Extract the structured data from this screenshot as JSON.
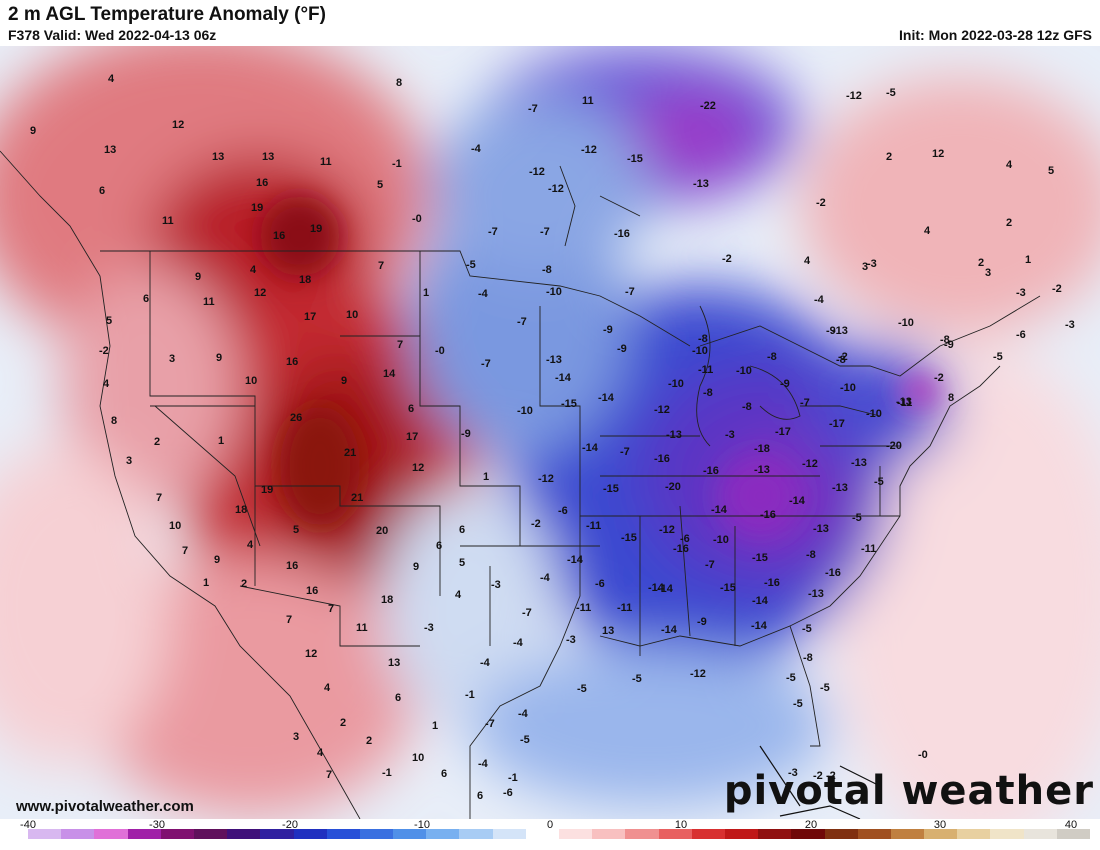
{
  "header": {
    "title": "2 m AGL Temperature Anomaly (°F)",
    "valid": "F378 Valid: Wed 2022-04-13 06z",
    "init": "Init: Mon 2022-03-28 12z GFS"
  },
  "footer": {
    "website": "www.pivotalweather.com",
    "logo": "pivotal weather"
  },
  "colorbar": {
    "labels": [
      "-40",
      "-30",
      "-20",
      "-10",
      "0",
      "10",
      "20",
      "30",
      "40"
    ],
    "colors": [
      "#d8b8f0",
      "#c890e8",
      "#e070d8",
      "#a020a8",
      "#801070",
      "#60105c",
      "#40107a",
      "#3020a0",
      "#2030c0",
      "#2850d8",
      "#3a70e0",
      "#5090e8",
      "#78b0f0",
      "#a8ccf4",
      "#d4e4f8",
      "#ffffff",
      "#fce0e0",
      "#f8c0c0",
      "#f09090",
      "#e86060",
      "#d83030",
      "#c01818",
      "#901010",
      "#700808",
      "#803010",
      "#a05020",
      "#c08040",
      "#d8b070",
      "#e8d0a0",
      "#f0e4c8",
      "#e8e4dc",
      "#d0ccc4"
    ]
  },
  "map_labels": [
    {
      "t": "4",
      "id": "anom-1"
    },
    {
      "t": "8",
      "id": "anom-2"
    },
    {
      "t": "9",
      "id": "anom-3"
    },
    {
      "t": "12",
      "id": "anom-4"
    },
    {
      "t": "13",
      "id": "anom-5"
    },
    {
      "t": "13",
      "id": "anom-6"
    },
    {
      "t": "13",
      "id": "anom-7"
    },
    {
      "t": "11",
      "id": "anom-8"
    },
    {
      "t": "6",
      "id": "anom-9"
    },
    {
      "t": "16",
      "id": "anom-10"
    },
    {
      "t": "19",
      "id": "anom-11"
    },
    {
      "t": "11",
      "id": "anom-12"
    },
    {
      "t": "16",
      "id": "anom-13"
    },
    {
      "t": "19",
      "id": "anom-14"
    },
    {
      "t": "5",
      "id": "anom-15"
    },
    {
      "t": "-1",
      "id": "anom-16"
    },
    {
      "t": "-0",
      "id": "anom-17"
    },
    {
      "t": "9",
      "id": "anom-18"
    },
    {
      "t": "4",
      "id": "anom-19"
    },
    {
      "t": "18",
      "id": "anom-20"
    },
    {
      "t": "7",
      "id": "anom-21"
    },
    {
      "t": "12",
      "id": "anom-22"
    },
    {
      "t": "6",
      "id": "anom-23"
    },
    {
      "t": "11",
      "id": "anom-24"
    },
    {
      "t": "17",
      "id": "anom-25"
    },
    {
      "t": "10",
      "id": "anom-26"
    },
    {
      "t": "1",
      "id": "anom-27"
    },
    {
      "t": "5",
      "id": "anom-28"
    },
    {
      "t": "-2",
      "id": "anom-29"
    },
    {
      "t": "3",
      "id": "anom-30"
    },
    {
      "t": "9",
      "id": "anom-31"
    },
    {
      "t": "16",
      "id": "anom-32"
    },
    {
      "t": "7",
      "id": "anom-33"
    },
    {
      "t": "-0",
      "id": "anom-34"
    },
    {
      "t": "4",
      "id": "anom-35"
    },
    {
      "t": "10",
      "id": "anom-36"
    },
    {
      "t": "9",
      "id": "anom-37"
    },
    {
      "t": "14",
      "id": "anom-38"
    },
    {
      "t": "8",
      "id": "anom-39"
    },
    {
      "t": "26",
      "id": "anom-40"
    },
    {
      "t": "6",
      "id": "anom-41"
    },
    {
      "t": "2",
      "id": "anom-42"
    },
    {
      "t": "1",
      "id": "anom-43"
    },
    {
      "t": "17",
      "id": "anom-44"
    },
    {
      "t": "3",
      "id": "anom-45"
    },
    {
      "t": "21",
      "id": "anom-46"
    },
    {
      "t": "12",
      "id": "anom-47"
    },
    {
      "t": "7",
      "id": "anom-48"
    },
    {
      "t": "19",
      "id": "anom-49"
    },
    {
      "t": "21",
      "id": "anom-50"
    },
    {
      "t": "18",
      "id": "anom-51"
    },
    {
      "t": "10",
      "id": "anom-52"
    },
    {
      "t": "5",
      "id": "anom-53"
    },
    {
      "t": "20",
      "id": "anom-54"
    },
    {
      "t": "4",
      "id": "anom-55"
    },
    {
      "t": "7",
      "id": "anom-56"
    },
    {
      "t": "9",
      "id": "anom-57"
    },
    {
      "t": "16",
      "id": "anom-58"
    },
    {
      "t": "16",
      "id": "anom-59"
    },
    {
      "t": "9",
      "id": "anom-60"
    },
    {
      "t": "6",
      "id": "anom-61"
    },
    {
      "t": "6",
      "id": "anom-62"
    },
    {
      "t": "5",
      "id": "anom-63"
    },
    {
      "t": "7",
      "id": "anom-64"
    },
    {
      "t": "18",
      "id": "anom-65"
    },
    {
      "t": "4",
      "id": "anom-66"
    },
    {
      "t": "1",
      "id": "anom-67"
    },
    {
      "t": "2",
      "id": "anom-68"
    },
    {
      "t": "7",
      "id": "anom-69"
    },
    {
      "t": "11",
      "id": "anom-70"
    },
    {
      "t": "12",
      "id": "anom-71"
    },
    {
      "t": "-3",
      "id": "anom-72"
    },
    {
      "t": "4",
      "id": "anom-73"
    },
    {
      "t": "13",
      "id": "anom-74"
    },
    {
      "t": "6",
      "id": "anom-75"
    },
    {
      "t": "2",
      "id": "anom-76"
    },
    {
      "t": "3",
      "id": "anom-77"
    },
    {
      "t": "1",
      "id": "anom-78"
    },
    {
      "t": "2",
      "id": "anom-79"
    },
    {
      "t": "4",
      "id": "anom-80"
    },
    {
      "t": "10",
      "id": "anom-81"
    },
    {
      "t": "7",
      "id": "anom-82"
    },
    {
      "t": "-1",
      "id": "anom-83"
    },
    {
      "t": "6",
      "id": "anom-84"
    },
    {
      "t": "6",
      "id": "anom-85"
    },
    {
      "t": "-7",
      "id": "anom-86"
    },
    {
      "t": "11",
      "id": "anom-87"
    },
    {
      "t": "-12",
      "id": "anom-88"
    },
    {
      "t": "-22",
      "id": "anom-89"
    },
    {
      "t": "-4",
      "id": "anom-90"
    },
    {
      "t": "-12",
      "id": "anom-91"
    },
    {
      "t": "-15",
      "id": "anom-92"
    },
    {
      "t": "-12",
      "id": "anom-93"
    },
    {
      "t": "-13",
      "id": "anom-94"
    },
    {
      "t": "-7",
      "id": "anom-95"
    },
    {
      "t": "-7",
      "id": "anom-96"
    },
    {
      "t": "-16",
      "id": "anom-97"
    },
    {
      "t": "-5",
      "id": "anom-98"
    },
    {
      "t": "-8",
      "id": "anom-99"
    },
    {
      "t": "-2",
      "id": "anom-100"
    },
    {
      "t": "-4",
      "id": "anom-101"
    },
    {
      "t": "-10",
      "id": "anom-102"
    },
    {
      "t": "-7",
      "id": "anom-103"
    },
    {
      "t": "-7",
      "id": "anom-104"
    },
    {
      "t": "-9",
      "id": "anom-105"
    },
    {
      "t": "-8",
      "id": "anom-106"
    },
    {
      "t": "-4",
      "id": "anom-107"
    },
    {
      "t": "-7",
      "id": "anom-108"
    },
    {
      "t": "-13",
      "id": "anom-109"
    },
    {
      "t": "-9",
      "id": "anom-110"
    },
    {
      "t": "-10",
      "id": "anom-111"
    },
    {
      "t": "-8",
      "id": "anom-112"
    },
    {
      "t": "-13",
      "id": "anom-113"
    },
    {
      "t": "-14",
      "id": "anom-114"
    },
    {
      "t": "-10",
      "id": "anom-115"
    },
    {
      "t": "-11",
      "id": "anom-116"
    },
    {
      "t": "-10",
      "id": "anom-117"
    },
    {
      "t": "-9",
      "id": "anom-118"
    },
    {
      "t": "-8",
      "id": "anom-119"
    },
    {
      "t": "-15",
      "id": "anom-120"
    },
    {
      "t": "-12",
      "id": "anom-121"
    },
    {
      "t": "-8",
      "id": "anom-122"
    },
    {
      "t": "-7",
      "id": "anom-123"
    },
    {
      "t": "-10",
      "id": "anom-124"
    },
    {
      "t": "-14",
      "id": "anom-125"
    },
    {
      "t": "-13",
      "id": "anom-126"
    },
    {
      "t": "-3",
      "id": "anom-127"
    },
    {
      "t": "-9",
      "id": "anom-128"
    },
    {
      "t": "-14",
      "id": "anom-129"
    },
    {
      "t": "-7",
      "id": "anom-130"
    },
    {
      "t": "-16",
      "id": "anom-131"
    },
    {
      "t": "-16",
      "id": "anom-132"
    },
    {
      "t": "-18",
      "id": "anom-133"
    },
    {
      "t": "-13",
      "id": "anom-134"
    },
    {
      "t": "-17",
      "id": "anom-135"
    },
    {
      "t": "-12",
      "id": "anom-136"
    },
    {
      "t": "-17",
      "id": "anom-137"
    },
    {
      "t": "-10",
      "id": "anom-138"
    },
    {
      "t": "-20",
      "id": "anom-139"
    },
    {
      "t": "-13",
      "id": "anom-140"
    },
    {
      "t": "-5",
      "id": "anom-141"
    },
    {
      "t": "1",
      "id": "anom-142"
    },
    {
      "t": "-12",
      "id": "anom-143"
    },
    {
      "t": "-15",
      "id": "anom-144"
    },
    {
      "t": "-20",
      "id": "anom-145"
    },
    {
      "t": "-14",
      "id": "anom-146"
    },
    {
      "t": "-13",
      "id": "anom-147"
    },
    {
      "t": "-5",
      "id": "anom-148"
    },
    {
      "t": "-2",
      "id": "anom-149"
    },
    {
      "t": "-6",
      "id": "anom-150"
    },
    {
      "t": "-11",
      "id": "anom-151"
    },
    {
      "t": "-12",
      "id": "anom-152"
    },
    {
      "t": "-14",
      "id": "anom-153"
    },
    {
      "t": "-16",
      "id": "anom-154"
    },
    {
      "t": "-13",
      "id": "anom-155"
    },
    {
      "t": "-6",
      "id": "anom-156"
    },
    {
      "t": "-15",
      "id": "anom-157"
    },
    {
      "t": "-16",
      "id": "anom-158"
    },
    {
      "t": "-10",
      "id": "anom-159"
    },
    {
      "t": "-15",
      "id": "anom-160"
    },
    {
      "t": "-8",
      "id": "anom-161"
    },
    {
      "t": "-14",
      "id": "anom-162"
    },
    {
      "t": "-7",
      "id": "anom-163"
    },
    {
      "t": "-11",
      "id": "anom-164"
    },
    {
      "t": "-14",
      "id": "anom-165"
    },
    {
      "t": "-15",
      "id": "anom-166"
    },
    {
      "t": "-16",
      "id": "anom-167"
    },
    {
      "t": "-16",
      "id": "anom-168"
    },
    {
      "t": "-3",
      "id": "anom-169"
    },
    {
      "t": "-4",
      "id": "anom-170"
    },
    {
      "t": "-6",
      "id": "anom-171"
    },
    {
      "t": "-11",
      "id": "anom-172"
    },
    {
      "t": "-11",
      "id": "anom-173"
    },
    {
      "t": "-14",
      "id": "anom-174"
    },
    {
      "t": "-14",
      "id": "anom-175"
    },
    {
      "t": "-13",
      "id": "anom-176"
    },
    {
      "t": "-7",
      "id": "anom-177"
    },
    {
      "t": "-4",
      "id": "anom-178"
    },
    {
      "t": "-3",
      "id": "anom-179"
    },
    {
      "t": "13",
      "id": "anom-180"
    },
    {
      "t": "-14",
      "id": "anom-181"
    },
    {
      "t": "-9",
      "id": "anom-182"
    },
    {
      "t": "-14",
      "id": "anom-183"
    },
    {
      "t": "-5",
      "id": "anom-184"
    },
    {
      "t": "-4",
      "id": "anom-185"
    },
    {
      "t": "-5",
      "id": "anom-186"
    },
    {
      "t": "-5",
      "id": "anom-187"
    },
    {
      "t": "-12",
      "id": "anom-188"
    },
    {
      "t": "-8",
      "id": "anom-189"
    },
    {
      "t": "-5",
      "id": "anom-190"
    },
    {
      "t": "-5",
      "id": "anom-191"
    },
    {
      "t": "-5",
      "id": "anom-192"
    },
    {
      "t": "-1",
      "id": "anom-193"
    },
    {
      "t": "-7",
      "id": "anom-194"
    },
    {
      "t": "-4",
      "id": "anom-195"
    },
    {
      "t": "-5",
      "id": "anom-196"
    },
    {
      "t": "-4",
      "id": "anom-197"
    },
    {
      "t": "-1",
      "id": "anom-198"
    },
    {
      "t": "-6",
      "id": "anom-199"
    },
    {
      "t": "-0",
      "id": "anom-200"
    },
    {
      "t": "-3",
      "id": "anom-201"
    },
    {
      "t": "-2",
      "id": "anom-202"
    },
    {
      "t": "-2",
      "id": "anom-203"
    },
    {
      "t": "-9",
      "id": "anom-204"
    },
    {
      "t": "-8",
      "id": "anom-205"
    },
    {
      "t": "-2",
      "id": "anom-206"
    },
    {
      "t": "-10",
      "id": "anom-207"
    },
    {
      "t": "-13",
      "id": "anom-208"
    },
    {
      "t": "-11",
      "id": "anom-209"
    },
    {
      "t": "-10",
      "id": "anom-210"
    },
    {
      "t": "8",
      "id": "anom-211"
    },
    {
      "t": "-2",
      "id": "anom-212"
    },
    {
      "t": "-8",
      "id": "anom-213"
    },
    {
      "t": "-6",
      "id": "anom-214"
    },
    {
      "t": "-5",
      "id": "anom-215"
    },
    {
      "t": "-3",
      "id": "anom-216"
    },
    {
      "t": "-2",
      "id": "anom-217"
    },
    {
      "t": "-5",
      "id": "anom-218"
    },
    {
      "t": "-3",
      "id": "anom-219"
    },
    {
      "t": "-12",
      "id": "anom-220"
    },
    {
      "t": "5",
      "id": "anom-221"
    },
    {
      "t": "12",
      "id": "anom-222"
    },
    {
      "t": "2",
      "id": "anom-223"
    },
    {
      "t": "4",
      "id": "anom-224"
    },
    {
      "t": "4",
      "id": "anom-225"
    },
    {
      "t": "2",
      "id": "anom-226"
    },
    {
      "t": "2",
      "id": "anom-227"
    },
    {
      "t": "4",
      "id": "anom-228"
    },
    {
      "t": "3",
      "id": "anom-229"
    },
    {
      "t": "1",
      "id": "anom-230"
    },
    {
      "t": "3",
      "id": "anom-231"
    },
    {
      "t": "-9",
      "id": "anom-232"
    },
    {
      "t": "-3",
      "id": "anom-233"
    },
    {
      "t": "-2",
      "id": "anom-234"
    }
  ]
}
